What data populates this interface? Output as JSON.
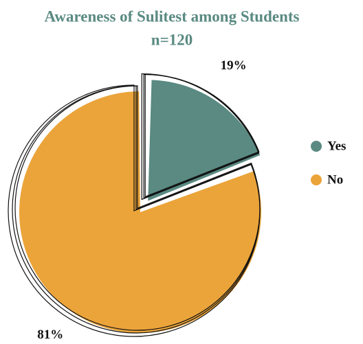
{
  "chart_data": {
    "type": "pie",
    "title": "Awareness of Sulitest among Students",
    "subtitle": "n=120",
    "categories": [
      "Yes",
      "No"
    ],
    "values": [
      19,
      81
    ],
    "value_labels": [
      "19%",
      "81%"
    ],
    "colors": [
      "#5a8a82",
      "#eba43a"
    ],
    "legend": "right"
  }
}
